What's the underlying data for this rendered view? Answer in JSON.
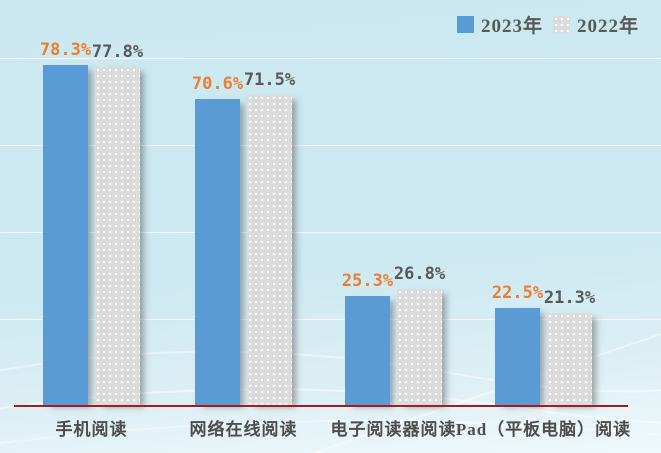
{
  "chart_data": {
    "type": "bar",
    "title": "",
    "categories": [
      "手机阅读",
      "网络在线阅读",
      "电子阅读器阅读",
      "Pad（平板电脑）阅读"
    ],
    "series": [
      {
        "name": "2023年",
        "values": [
          78.3,
          70.6,
          25.3,
          22.5
        ],
        "labels": [
          "78.3%",
          "70.6%",
          "25.3%",
          "22.5%"
        ],
        "bar_color": "#5b9bd5",
        "label_color": "#ed7d31",
        "pattern": "solid"
      },
      {
        "name": "2022年",
        "values": [
          77.8,
          71.5,
          26.8,
          21.3
        ],
        "labels": [
          "77.8%",
          "71.5%",
          "26.8%",
          "21.3%"
        ],
        "bar_color": "#dcdcdc",
        "label_color": "#595959",
        "pattern": "dots"
      }
    ],
    "value_suffix": "%",
    "ylim": [
      0,
      90
    ],
    "gridlines": [
      20,
      40,
      60,
      80
    ],
    "grid_on": true,
    "legend_position": "top-right",
    "data_labels": true,
    "xlabel": "",
    "ylabel": ""
  },
  "colors": {
    "background_top": "#cbe8f1",
    "background_bottom": "#f0f9fb",
    "axis_line": "#a61c1c",
    "gridline": "rgba(255,255,255,0.75)",
    "category_text": "#4d4d4d",
    "legend_text": "#595959",
    "bar_2023": "#5b9bd5",
    "bar_2022": "#dcdcdc",
    "label_2023": "#ed7d31",
    "label_2022": "#595959"
  }
}
